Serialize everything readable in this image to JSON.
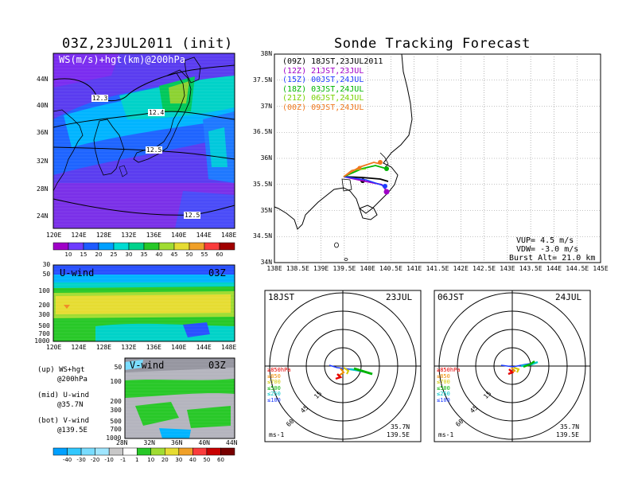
{
  "left_title": "03Z,23JUL2011 (init)",
  "right_title": "Sonde Tracking Forecast",
  "map_panel": {
    "label": "WS(m/s)+hgt(km)@200hPa",
    "lat_ticks": [
      "44N",
      "40N",
      "36N",
      "32N",
      "28N",
      "24N"
    ],
    "lon_ticks": [
      "120E",
      "124E",
      "128E",
      "132E",
      "136E",
      "140E",
      "144E",
      "148E"
    ],
    "contours": [
      "12.3",
      "12.4",
      "12.5",
      "12.5"
    ],
    "colorbar": [
      "10",
      "15",
      "20",
      "25",
      "30",
      "35",
      "40",
      "45",
      "50",
      "55",
      "60"
    ],
    "colorbar_colors": [
      "#a000c8",
      "#6e3cff",
      "#1e5aff",
      "#00a0ff",
      "#00dcd2",
      "#00d28c",
      "#28c828",
      "#a0dc32",
      "#e6dc32",
      "#f0a028",
      "#fa3c3c",
      "#a00000"
    ]
  },
  "u_panel": {
    "label": "U-wind",
    "time": "03Z",
    "p_ticks": [
      "30",
      "50",
      "100",
      "200",
      "300",
      "500",
      "700",
      "1000"
    ],
    "lon_ticks": [
      "120E",
      "124E",
      "128E",
      "132E",
      "136E",
      "140E",
      "144E",
      "148E"
    ]
  },
  "v_panel": {
    "label": "V-wind",
    "time": "03Z",
    "p_ticks": [
      "50",
      "100",
      "200",
      "300",
      "500",
      "700",
      "1000"
    ],
    "lat_ticks": [
      "28N",
      "32N",
      "36N",
      "40N",
      "44N"
    ],
    "colorbar": [
      "-40",
      "-30",
      "-20",
      "-10",
      "-1",
      "1",
      "10",
      "20",
      "30",
      "40",
      "50",
      "60"
    ],
    "colorbar_colors": [
      "#00a0ff",
      "#32c8ff",
      "#78dcff",
      "#a0e6ff",
      "#c8c8c8",
      "#ffffff",
      "#28c828",
      "#a0dc32",
      "#e6dc32",
      "#f0a028",
      "#fa3c3c",
      "#c80000",
      "#780000"
    ]
  },
  "notes": {
    "up": "(up) WS+hgt",
    "up2": "@200hPa",
    "mid": "(mid) U-wind",
    "mid2": "@35.7N",
    "bot": "(bot) V-wind",
    "bot2": "@139.5E"
  },
  "track": {
    "lat_ticks": [
      "38N",
      "37.5N",
      "37N",
      "36.5N",
      "36N",
      "35.5N",
      "35N",
      "34.5N",
      "34N"
    ],
    "lon_ticks": [
      "138E",
      "138.5E",
      "139E",
      "139.5E",
      "140E",
      "140.5E",
      "141E",
      "141.5E",
      "142E",
      "142.5E",
      "143E",
      "143.5E",
      "144E",
      "144.5E",
      "145E"
    ],
    "legend": [
      {
        "z": "(09Z)",
        "t": "18JST,23JUL2011",
        "color": "#000000"
      },
      {
        "z": "(12Z)",
        "t": "21JST,23JUL",
        "color": "#a000c8"
      },
      {
        "z": "(15Z)",
        "t": "00JST,24JUL",
        "color": "#1e3cff"
      },
      {
        "z": "(18Z)",
        "t": "03JST,24JUL",
        "color": "#00b400"
      },
      {
        "z": "(21Z)",
        "t": "06JST,24JUL",
        "color": "#78d200"
      },
      {
        "z": "(00Z)",
        "t": "09JST,24JUL",
        "color": "#f0781e"
      }
    ],
    "vup": "VUP= 4.5 m/s",
    "vdw": "VDW= -3.0 m/s",
    "burst": "Burst Alt= 21.0 km"
  },
  "hodo_left": {
    "time": "18JST",
    "date": "23JUL",
    "lat": "35.7N",
    "lon": "139.5E",
    "unit": "ms-1",
    "rings": [
      "15",
      "45",
      "60"
    ],
    "levels": [
      {
        "t": "≥850hPa",
        "c": "#e60000"
      },
      {
        "t": "≤850",
        "c": "#f08c00"
      },
      {
        "t": "≤700",
        "c": "#d2c800"
      },
      {
        "t": "≤500",
        "c": "#00b400"
      },
      {
        "t": "≤250",
        "c": "#00c8c8"
      },
      {
        "t": "≤100",
        "c": "#1e3cff"
      }
    ]
  },
  "hodo_right": {
    "time": "06JST",
    "date": "24JUL",
    "lat": "35.7N",
    "lon": "139.5E",
    "unit": "ms-1",
    "rings": [
      "15",
      "45",
      "60"
    ],
    "levels": [
      {
        "t": "≥850hPa",
        "c": "#e60000"
      },
      {
        "t": "≤850",
        "c": "#f08c00"
      },
      {
        "t": "≤700",
        "c": "#d2c800"
      },
      {
        "t": "≤500",
        "c": "#00b400"
      },
      {
        "t": "≤250",
        "c": "#00c8c8"
      },
      {
        "t": "≤100",
        "c": "#1e3cff"
      }
    ]
  }
}
